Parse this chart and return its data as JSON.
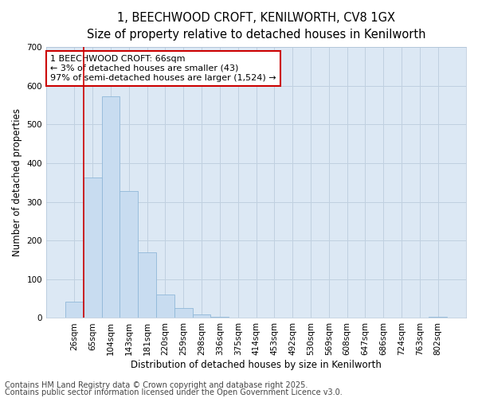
{
  "title_line1": "1, BEECHWOOD CROFT, KENILWORTH, CV8 1GX",
  "title_line2": "Size of property relative to detached houses in Kenilworth",
  "xlabel": "Distribution of detached houses by size in Kenilworth",
  "ylabel": "Number of detached properties",
  "bar_values": [
    43,
    362,
    572,
    327,
    170,
    60,
    25,
    10,
    4,
    1,
    0,
    0,
    0,
    0,
    0,
    0,
    0,
    0,
    0,
    0,
    4
  ],
  "categories": [
    "26sqm",
    "65sqm",
    "104sqm",
    "143sqm",
    "181sqm",
    "220sqm",
    "259sqm",
    "298sqm",
    "336sqm",
    "375sqm",
    "414sqm",
    "453sqm",
    "492sqm",
    "530sqm",
    "569sqm",
    "608sqm",
    "647sqm",
    "686sqm",
    "724sqm",
    "763sqm",
    "802sqm"
  ],
  "bar_color": "#c8dcf0",
  "bar_edge_color": "#90b8d8",
  "vline_color": "#cc0000",
  "vline_x": 0.525,
  "ylim": [
    0,
    700
  ],
  "yticks": [
    0,
    100,
    200,
    300,
    400,
    500,
    600,
    700
  ],
  "annotation_text": "1 BEECHWOOD CROFT: 66sqm\n← 3% of detached houses are smaller (43)\n97% of semi-detached houses are larger (1,524) →",
  "annotation_box_facecolor": "#ffffff",
  "annotation_box_edgecolor": "#cc0000",
  "grid_color": "#c0d0e0",
  "plot_bg_color": "#dce8f4",
  "fig_bg_color": "#ffffff",
  "footer_line1": "Contains HM Land Registry data © Crown copyright and database right 2025.",
  "footer_line2": "Contains public sector information licensed under the Open Government Licence v3.0.",
  "title_fontsize": 10.5,
  "subtitle_fontsize": 9.5,
  "axis_label_fontsize": 8.5,
  "tick_fontsize": 7.5,
  "annotation_fontsize": 8,
  "footer_fontsize": 7
}
